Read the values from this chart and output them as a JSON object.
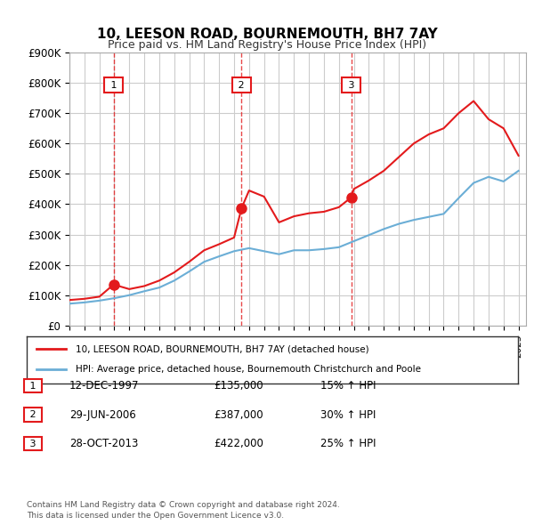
{
  "title": "10, LEESON ROAD, BOURNEMOUTH, BH7 7AY",
  "subtitle": "Price paid vs. HM Land Registry's House Price Index (HPI)",
  "ylim": [
    0,
    900000
  ],
  "yticks": [
    0,
    100000,
    200000,
    300000,
    400000,
    500000,
    600000,
    700000,
    800000,
    900000
  ],
  "ytick_labels": [
    "£0",
    "£100K",
    "£200K",
    "£300K",
    "£400K",
    "£500K",
    "£600K",
    "£700K",
    "£800K",
    "£900K"
  ],
  "xlim_start": 1995.0,
  "xlim_end": 2025.5,
  "hpi_line_color": "#6baed6",
  "price_line_color": "#e31a1c",
  "sale_marker_color": "#e31a1c",
  "vline_color": "#e31a1c",
  "grid_color": "#cccccc",
  "bg_color": "#ffffff",
  "legend_border_color": "#333333",
  "sale_box_color": "#e31a1c",
  "transactions": [
    {
      "num": 1,
      "date": "12-DEC-1997",
      "price": 135000,
      "hpi_pct": "15%",
      "x": 1997.95
    },
    {
      "num": 2,
      "date": "29-JUN-2006",
      "price": 387000,
      "hpi_pct": "30%",
      "x": 2006.5
    },
    {
      "num": 3,
      "date": "28-OCT-2013",
      "price": 422000,
      "hpi_pct": "25%",
      "x": 2013.82
    }
  ],
  "hpi_data": {
    "years": [
      1995,
      1996,
      1997,
      1998,
      1999,
      2000,
      2001,
      2002,
      2003,
      2004,
      2005,
      2006,
      2007,
      2008,
      2009,
      2010,
      2011,
      2012,
      2013,
      2014,
      2015,
      2016,
      2017,
      2018,
      2019,
      2020,
      2021,
      2022,
      2023,
      2024,
      2025
    ],
    "values": [
      72000,
      76000,
      82000,
      90000,
      100000,
      113000,
      125000,
      148000,
      178000,
      210000,
      228000,
      245000,
      255000,
      245000,
      235000,
      248000,
      248000,
      252000,
      258000,
      278000,
      298000,
      318000,
      335000,
      348000,
      358000,
      368000,
      420000,
      470000,
      490000,
      475000,
      510000
    ]
  },
  "price_data": {
    "years": [
      1995,
      1996,
      1997,
      1997.95,
      1999,
      2000,
      2001,
      2002,
      2003,
      2004,
      2005,
      2006,
      2006.5,
      2007,
      2008,
      2009,
      2010,
      2011,
      2012,
      2013,
      2013.82,
      2014,
      2015,
      2016,
      2017,
      2018,
      2019,
      2020,
      2021,
      2022,
      2023,
      2024,
      2025
    ],
    "values": [
      84000,
      88000,
      95000,
      135000,
      120000,
      130000,
      148000,
      175000,
      210000,
      248000,
      268000,
      290000,
      387000,
      445000,
      425000,
      340000,
      360000,
      370000,
      375000,
      390000,
      422000,
      450000,
      478000,
      510000,
      555000,
      600000,
      630000,
      650000,
      700000,
      740000,
      680000,
      650000,
      560000
    ]
  },
  "legend_entries": [
    "10, LEESON ROAD, BOURNEMOUTH, BH7 7AY (detached house)",
    "HPI: Average price, detached house, Bournemouth Christchurch and Poole"
  ],
  "footer_line1": "Contains HM Land Registry data © Crown copyright and database right 2024.",
  "footer_line2": "This data is licensed under the Open Government Licence v3.0."
}
